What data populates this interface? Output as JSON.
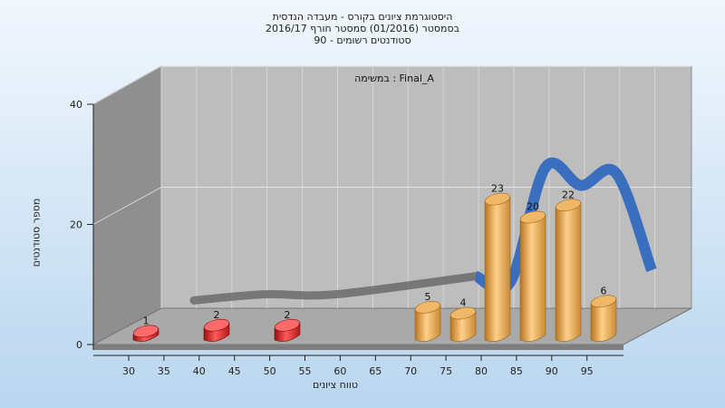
{
  "chart_data": {
    "type": "bar",
    "title_lines": [
      "היסטוגרמת ציונים בקורס - מעבדה הנדסית",
      "בסמסטר  (01/2016)  סמסטר חורף 2016/17",
      "סטודנטים רשומים - 90"
    ],
    "subtitle": "במשימה : Final_A",
    "xlabel": "טווח ציונים",
    "ylabel": "מספר סטודנטים",
    "ylim": [
      0,
      40
    ],
    "y_ticks": [
      "0",
      "20",
      "40"
    ],
    "x_ticks": [
      "30",
      "35",
      "40",
      "45",
      "50",
      "55",
      "60",
      "65",
      "70",
      "75",
      "80",
      "85",
      "90",
      "95"
    ],
    "categories": [
      "30-35",
      "40-45",
      "50-55",
      "70-75",
      "75-80",
      "80-85",
      "85-90",
      "90-95",
      "95-100"
    ],
    "values": [
      1,
      2,
      2,
      5,
      4,
      23,
      20,
      22,
      6
    ],
    "bar_colors": [
      "#e02020",
      "#e02020",
      "#e02020",
      "#e8a23c",
      "#e8a23c",
      "#e8a23c",
      "#e8a23c",
      "#e8a23c",
      "#e8a23c"
    ],
    "curve_colors": {
      "left": "#6b6b6b",
      "right": "#3a6fbf"
    },
    "grid": true
  }
}
